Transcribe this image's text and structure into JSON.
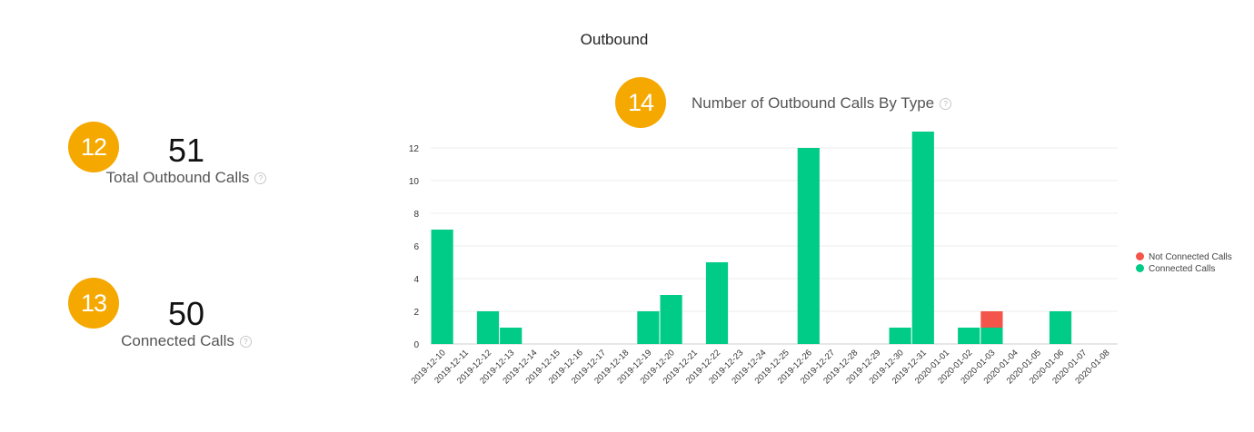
{
  "page": {
    "title": "Outbound"
  },
  "metrics": [
    {
      "badge": "12",
      "value": "51",
      "label": "Total Outbound Calls",
      "help": "?"
    },
    {
      "badge": "13",
      "value": "50",
      "label": "Connected Calls",
      "help": "?"
    }
  ],
  "chart_header": {
    "badge": "14",
    "title": "Number of Outbound Calls By Type",
    "help": "?"
  },
  "colors": {
    "badge": "#f5a800",
    "connected": "#00cc88",
    "not_connected": "#f4554a"
  },
  "legend": [
    {
      "name": "Not Connected Calls",
      "color": "#f4554a"
    },
    {
      "name": "Connected Calls",
      "color": "#00cc88"
    }
  ],
  "chart_data": {
    "type": "bar",
    "stacked": true,
    "title": "Number of Outbound Calls By Type",
    "xlabel": "",
    "ylabel": "",
    "ylim": [
      0,
      13
    ],
    "yticks": [
      0,
      2,
      4,
      6,
      8,
      10,
      12
    ],
    "grid": true,
    "legend_position": "right",
    "categories": [
      "2019-12-10",
      "2019-12-11",
      "2019-12-12",
      "2019-12-13",
      "2019-12-14",
      "2019-12-15",
      "2019-12-16",
      "2019-12-17",
      "2019-12-18",
      "2019-12-19",
      "2019-12-20",
      "2019-12-21",
      "2019-12-22",
      "2019-12-23",
      "2019-12-24",
      "2019-12-25",
      "2019-12-26",
      "2019-12-27",
      "2019-12-28",
      "2019-12-29",
      "2019-12-30",
      "2019-12-31",
      "2020-01-01",
      "2020-01-02",
      "2020-01-03",
      "2020-01-04",
      "2020-01-05",
      "2020-01-06",
      "2020-01-07",
      "2020-01-08"
    ],
    "series": [
      {
        "name": "Connected Calls",
        "color": "#00cc88",
        "values": [
          7,
          0,
          2,
          1,
          0,
          0,
          0,
          0,
          0,
          2,
          3,
          0,
          5,
          0,
          0,
          0,
          12,
          0,
          0,
          0,
          1,
          13,
          0,
          1,
          1,
          0,
          0,
          2,
          0,
          0
        ]
      },
      {
        "name": "Not Connected Calls",
        "color": "#f4554a",
        "values": [
          0,
          0,
          0,
          0,
          0,
          0,
          0,
          0,
          0,
          0,
          0,
          0,
          0,
          0,
          0,
          0,
          0,
          0,
          0,
          0,
          0,
          0,
          0,
          0,
          1,
          0,
          0,
          0,
          0,
          0
        ]
      }
    ]
  }
}
